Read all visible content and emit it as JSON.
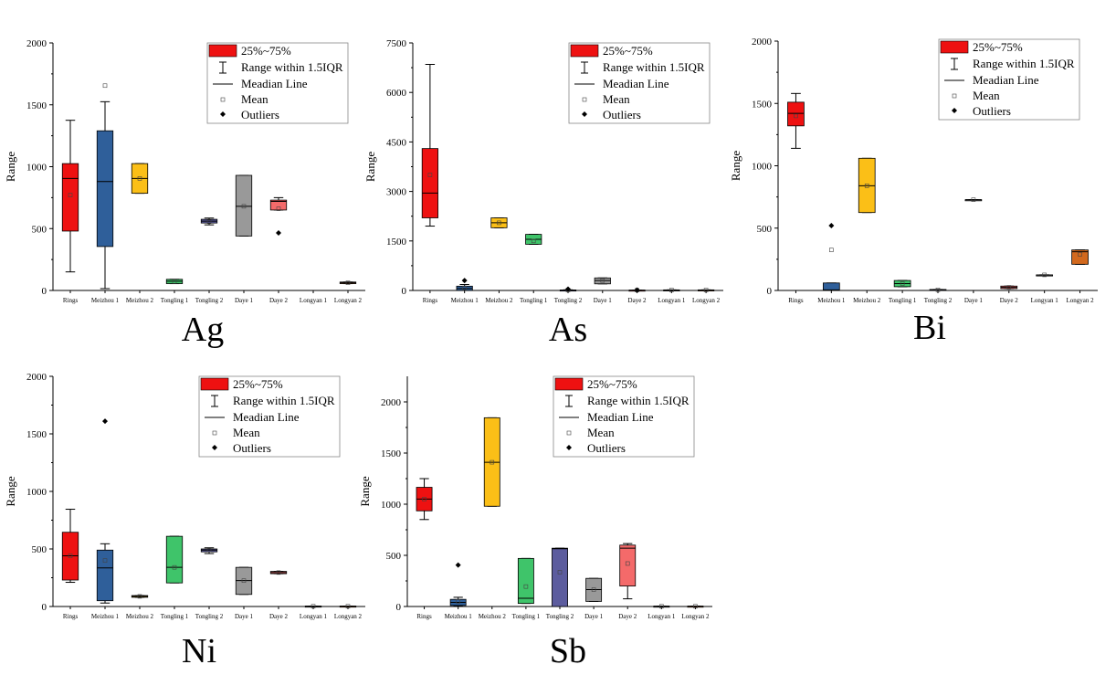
{
  "legend": {
    "box_label": "25%~75%",
    "whisker_label": "Range within 1.5IQR",
    "median_label": "Meadian Line",
    "mean_label": "Mean",
    "outlier_label": "Outliers"
  },
  "colors": {
    "Rings": "#ee1111",
    "Meizhou 1": "#2f5f9a",
    "Meizhou 2": "#fbbf17",
    "Tongling 1": "#3fc46a",
    "Tongling 2": "#5c5c9e",
    "Daye 1": "#999999",
    "Daye 2": "#f46a6a",
    "Longyan 1": "#888888",
    "Longyan 2": "#d2691e"
  },
  "chart_data": [
    {
      "type": "box",
      "title": "Ag",
      "ylabel": "Range",
      "ylim": [
        0,
        2000
      ],
      "yticks": [
        0,
        500,
        1000,
        1500,
        2000
      ],
      "categories": [
        "Rings",
        "Meizhou 1",
        "Meizhou 2",
        "Tongling 1",
        "Tongling 2",
        "Daye 1",
        "Daye 2",
        "Longyan 1",
        "Longyan 2"
      ],
      "boxes": [
        {
          "q1": 480,
          "median": 905,
          "q3": 1025,
          "lo": 150,
          "hi": 1375,
          "mean": 770,
          "outliers": []
        },
        {
          "q1": 355,
          "median": 880,
          "q3": 1290,
          "lo": 15,
          "hi": 1525,
          "mean": 1655,
          "outliers": []
        },
        {
          "q1": 785,
          "median": 905,
          "q3": 1025,
          "lo": 785,
          "hi": 1025,
          "mean": 905,
          "outliers": []
        },
        {
          "q1": 55,
          "median": 75,
          "q3": 90,
          "lo": 55,
          "hi": 90,
          "mean": 72,
          "outliers": []
        },
        {
          "q1": 545,
          "median": 560,
          "q3": 575,
          "lo": 530,
          "hi": 585,
          "mean": 555,
          "outliers": []
        },
        {
          "q1": 440,
          "median": 680,
          "q3": 930,
          "lo": 440,
          "hi": 930,
          "mean": 680,
          "outliers": []
        },
        {
          "q1": 650,
          "median": 720,
          "q3": 730,
          "lo": 650,
          "hi": 750,
          "mean": 660,
          "outliers": [
            465
          ]
        },
        null,
        {
          "q1": 55,
          "median": 62,
          "q3": 68,
          "lo": 55,
          "hi": 68,
          "mean": 62,
          "outliers": []
        }
      ]
    },
    {
      "type": "box",
      "title": "As",
      "ylabel": "Range",
      "ylim": [
        0,
        7500
      ],
      "yticks": [
        0,
        1500,
        3000,
        4500,
        6000,
        7500
      ],
      "categories": [
        "Rings",
        "Meizhou 1",
        "Meizhou 2",
        "Tongling 1",
        "Tongling 2",
        "Daye 1",
        "Daye 2",
        "Longyan 1",
        "Longyan 2"
      ],
      "boxes": [
        {
          "q1": 2200,
          "median": 2950,
          "q3": 4300,
          "lo": 1950,
          "hi": 6850,
          "mean": 3500,
          "outliers": []
        },
        {
          "q1": 0,
          "median": 60,
          "q3": 130,
          "lo": 0,
          "hi": 180,
          "mean": 80,
          "outliers": [
            300
          ]
        },
        {
          "q1": 1900,
          "median": 2050,
          "q3": 2200,
          "lo": 1900,
          "hi": 2200,
          "mean": 2050,
          "outliers": []
        },
        {
          "q1": 1400,
          "median": 1550,
          "q3": 1700,
          "lo": 1400,
          "hi": 1700,
          "mean": 1500,
          "outliers": []
        },
        {
          "q1": 5,
          "median": 10,
          "q3": 15,
          "lo": 0,
          "hi": 20,
          "mean": 10,
          "outliers": [
            40
          ]
        },
        {
          "q1": 200,
          "median": 300,
          "q3": 380,
          "lo": 200,
          "hi": 380,
          "mean": 300,
          "outliers": []
        },
        {
          "q1": 5,
          "median": 8,
          "q3": 12,
          "lo": 5,
          "hi": 12,
          "mean": 8,
          "outliers": [
            15
          ]
        },
        {
          "q1": 8,
          "median": 12,
          "q3": 18,
          "lo": 8,
          "hi": 18,
          "mean": 12,
          "outliers": []
        },
        {
          "q1": 8,
          "median": 12,
          "q3": 18,
          "lo": 8,
          "hi": 18,
          "mean": 12,
          "outliers": []
        }
      ]
    },
    {
      "type": "box",
      "title": "Bi",
      "ylabel": "Range",
      "ylim": [
        0,
        2000
      ],
      "yticks": [
        0,
        500,
        1000,
        1500,
        2000
      ],
      "categories": [
        "Rings",
        "Meizhou 1",
        "Meizhou 2",
        "Tongling 1",
        "Tongling 2",
        "Daye 1",
        "Daye 2",
        "Longyan 1",
        "Longyan 2"
      ],
      "boxes": [
        {
          "q1": 1320,
          "median": 1420,
          "q3": 1510,
          "lo": 1140,
          "hi": 1580,
          "mean": 1400,
          "outliers": []
        },
        {
          "q1": 0,
          "median": 5,
          "q3": 60,
          "lo": 0,
          "hi": 60,
          "mean": 325,
          "outliers": [
            520
          ]
        },
        {
          "q1": 625,
          "median": 840,
          "q3": 1060,
          "lo": 625,
          "hi": 1060,
          "mean": 840,
          "outliers": []
        },
        {
          "q1": 30,
          "median": 55,
          "q3": 80,
          "lo": 30,
          "hi": 80,
          "mean": 55,
          "outliers": []
        },
        {
          "q1": 2,
          "median": 5,
          "q3": 8,
          "lo": 2,
          "hi": 8,
          "mean": 5,
          "outliers": []
        },
        {
          "q1": 728,
          "median": 728,
          "q3": 728,
          "lo": 728,
          "hi": 728,
          "mean": 728,
          "outliers": []
        },
        {
          "q1": 15,
          "median": 25,
          "q3": 35,
          "lo": 15,
          "hi": 35,
          "mean": 25,
          "outliers": []
        },
        {
          "q1": 125,
          "median": 125,
          "q3": 125,
          "lo": 125,
          "hi": 125,
          "mean": 125,
          "outliers": []
        },
        {
          "q1": 210,
          "median": 310,
          "q3": 325,
          "lo": 210,
          "hi": 325,
          "mean": 290,
          "outliers": []
        }
      ]
    },
    {
      "type": "box",
      "title": "Ni",
      "ylabel": "Range",
      "ylim": [
        0,
        2000
      ],
      "yticks": [
        0,
        500,
        1000,
        1500,
        2000
      ],
      "categories": [
        "Rings",
        "Meizhou 1",
        "Meizhou 2",
        "Tongling 1",
        "Tongling 2",
        "Daye 1",
        "Daye 2",
        "Longyan 1",
        "Longyan 2"
      ],
      "boxes": [
        {
          "q1": 230,
          "median": 440,
          "q3": 645,
          "lo": 210,
          "hi": 845,
          "mean": 440,
          "outliers": []
        },
        {
          "q1": 50,
          "median": 335,
          "q3": 490,
          "lo": 30,
          "hi": 545,
          "mean": 400,
          "outliers": [
            1610
          ]
        },
        {
          "q1": 80,
          "median": 88,
          "q3": 95,
          "lo": 80,
          "hi": 95,
          "mean": 88,
          "outliers": []
        },
        {
          "q1": 205,
          "median": 340,
          "q3": 610,
          "lo": 205,
          "hi": 610,
          "mean": 340,
          "outliers": []
        },
        {
          "q1": 475,
          "median": 490,
          "q3": 500,
          "lo": 460,
          "hi": 510,
          "mean": 490,
          "outliers": []
        },
        {
          "q1": 105,
          "median": 225,
          "q3": 340,
          "lo": 105,
          "hi": 340,
          "mean": 225,
          "outliers": []
        },
        {
          "q1": 285,
          "median": 295,
          "q3": 305,
          "lo": 285,
          "hi": 305,
          "mean": 295,
          "outliers": []
        },
        {
          "q1": 0,
          "median": 2,
          "q3": 4,
          "lo": 0,
          "hi": 4,
          "mean": 2,
          "outliers": []
        },
        {
          "q1": 0,
          "median": 2,
          "q3": 4,
          "lo": 0,
          "hi": 4,
          "mean": 2,
          "outliers": []
        }
      ]
    },
    {
      "type": "box",
      "title": "Sb",
      "ylabel": "Range",
      "ylim": [
        0,
        2250
      ],
      "yticks": [
        0,
        500,
        1000,
        1500,
        2000
      ],
      "categories": [
        "Rings",
        "Meizhou 1",
        "Meizhou 2",
        "Tongling 1",
        "Tongling 2",
        "Daye 1",
        "Daye 2",
        "Longyan 1",
        "Longyan 2"
      ],
      "boxes": [
        {
          "q1": 935,
          "median": 1050,
          "q3": 1165,
          "lo": 850,
          "hi": 1250,
          "mean": 1050,
          "outliers": []
        },
        {
          "q1": 10,
          "median": 40,
          "q3": 70,
          "lo": 5,
          "hi": 90,
          "mean": 50,
          "outliers": [
            405
          ]
        },
        {
          "q1": 980,
          "median": 1410,
          "q3": 1845,
          "lo": 980,
          "hi": 1845,
          "mean": 1410,
          "outliers": []
        },
        {
          "q1": 30,
          "median": 80,
          "q3": 470,
          "lo": 30,
          "hi": 470,
          "mean": 195,
          "outliers": []
        },
        {
          "q1": 0,
          "median": 565,
          "q3": 570,
          "lo": 0,
          "hi": 570,
          "mean": 335,
          "outliers": []
        },
        {
          "q1": 50,
          "median": 165,
          "q3": 275,
          "lo": 50,
          "hi": 275,
          "mean": 165,
          "outliers": []
        },
        {
          "q1": 200,
          "median": 570,
          "q3": 600,
          "lo": 75,
          "hi": 615,
          "mean": 420,
          "outliers": []
        },
        {
          "q1": 0,
          "median": 2,
          "q3": 4,
          "lo": 0,
          "hi": 4,
          "mean": 2,
          "outliers": []
        },
        {
          "q1": 0,
          "median": 2,
          "q3": 4,
          "lo": 0,
          "hi": 4,
          "mean": 2,
          "outliers": []
        }
      ]
    }
  ]
}
